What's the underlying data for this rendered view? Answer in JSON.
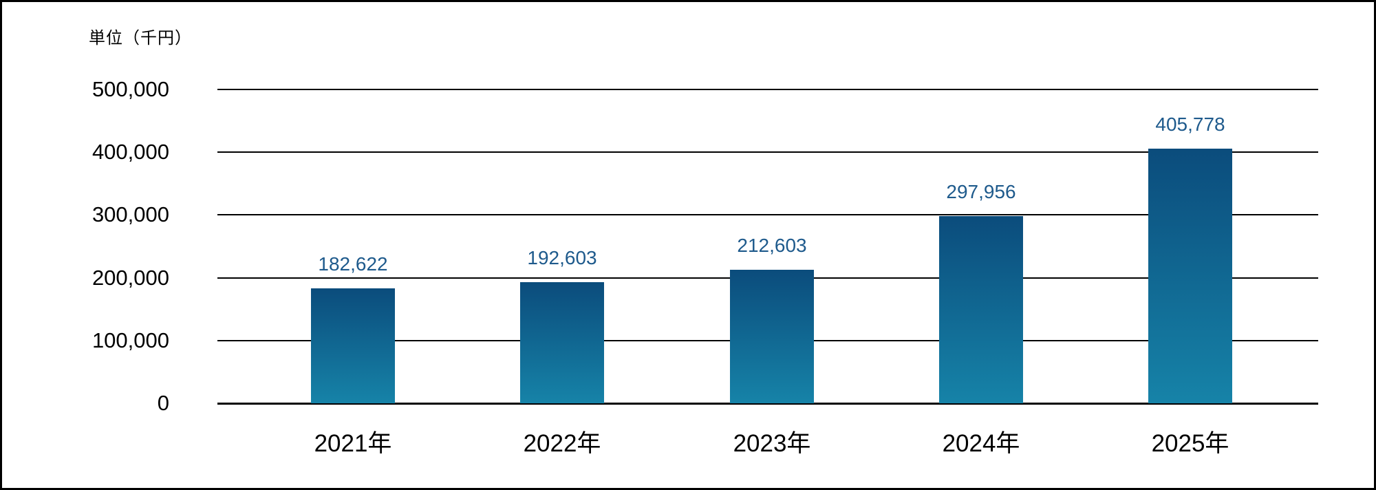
{
  "chart_data": {
    "type": "bar",
    "unit_label": "単位（千円）",
    "categories": [
      "2021年",
      "2022年",
      "2023年",
      "2024年",
      "2025年"
    ],
    "values": [
      182622,
      192603,
      212603,
      297956,
      405778
    ],
    "data_labels": [
      "182,622",
      "192,603",
      "212,603",
      "297,956",
      "405,778"
    ],
    "y_ticks": [
      {
        "value": 500000,
        "label": "500,000"
      },
      {
        "value": 400000,
        "label": "400,000"
      },
      {
        "value": 300000,
        "label": "300,000"
      },
      {
        "value": 200000,
        "label": "200,000"
      },
      {
        "value": 100000,
        "label": "100,000"
      },
      {
        "value": 0,
        "label": "0"
      }
    ],
    "ylim": [
      0,
      500000
    ],
    "xlabel": "",
    "ylabel": "",
    "grid": true,
    "legend": "none",
    "colors": {
      "bar_gradient_top": "#0B4C7C",
      "bar_gradient_bottom": "#1683A8",
      "data_label_text": "#1E5A8C",
      "gridline": "#000000",
      "axis_text": "#000000",
      "background": "#FFFFFF",
      "border": "#000000"
    }
  }
}
